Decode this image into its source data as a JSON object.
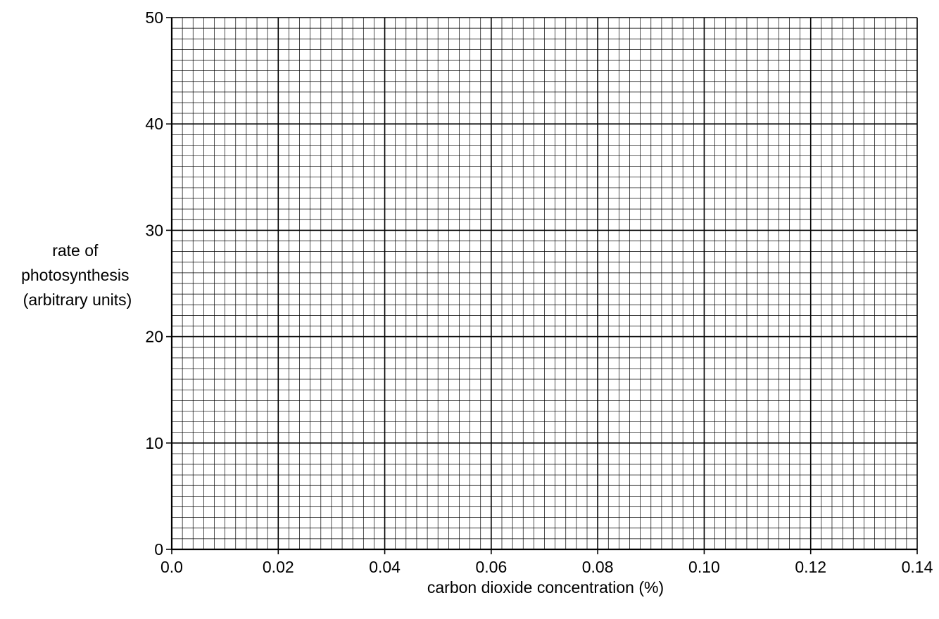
{
  "chart_data": {
    "type": "scatter",
    "title": "",
    "xlabel": "carbon dioxide concentration (%)",
    "ylabel_lines": [
      "rate of",
      "photosynthesis",
      "(arbitrary units)"
    ],
    "xlim": [
      0.0,
      0.14
    ],
    "ylim": [
      0,
      50
    ],
    "x_ticks": [
      {
        "value": 0.0,
        "label": "0.0"
      },
      {
        "value": 0.02,
        "label": "0.02"
      },
      {
        "value": 0.04,
        "label": "0.04"
      },
      {
        "value": 0.06,
        "label": "0.06"
      },
      {
        "value": 0.08,
        "label": "0.08"
      },
      {
        "value": 0.1,
        "label": "0.10"
      },
      {
        "value": 0.12,
        "label": "0.12"
      },
      {
        "value": 0.14,
        "label": "0.14"
      }
    ],
    "y_ticks": [
      {
        "value": 0,
        "label": "0"
      },
      {
        "value": 10,
        "label": "10"
      },
      {
        "value": 20,
        "label": "20"
      },
      {
        "value": 30,
        "label": "30"
      },
      {
        "value": 40,
        "label": "40"
      },
      {
        "value": 50,
        "label": "50"
      }
    ],
    "grid": true,
    "x_minor_step": 0.002,
    "y_minor_step": 1,
    "series": []
  }
}
